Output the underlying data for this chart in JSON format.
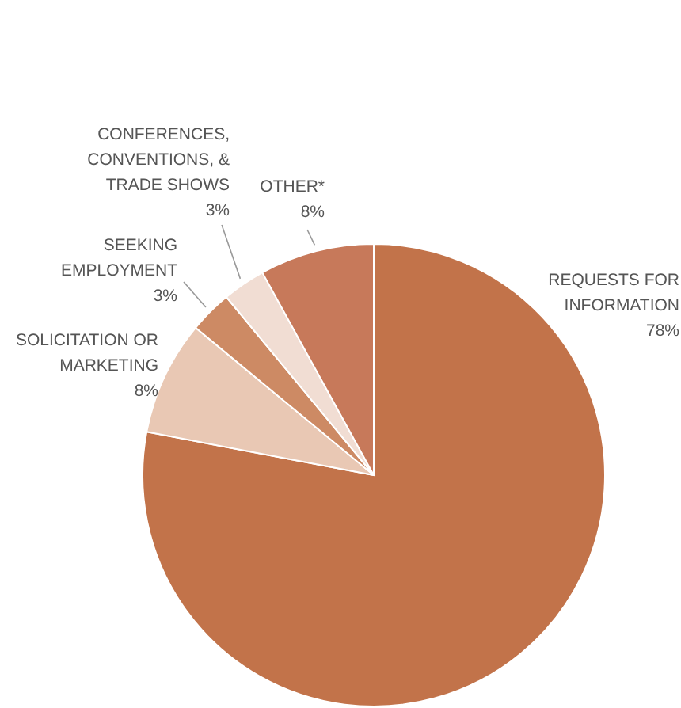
{
  "chart_data": {
    "type": "pie",
    "categories": [
      "REQUESTS FOR\nINFORMATION",
      "SOLICITATION OR\nMARKETING",
      "SEEKING\nEMPLOYMENT",
      "CONFERENCES,\nCONVENTIONS, &\nTRADE SHOWS",
      "OTHER*"
    ],
    "values": [
      78,
      8,
      3,
      3,
      8
    ],
    "value_labels": [
      "78%",
      "8%",
      "3%",
      "3%",
      "8%"
    ],
    "colors": [
      "#c2734a",
      "#e9c8b4",
      "#cd8a64",
      "#f1ddd3",
      "#c7795a"
    ]
  }
}
